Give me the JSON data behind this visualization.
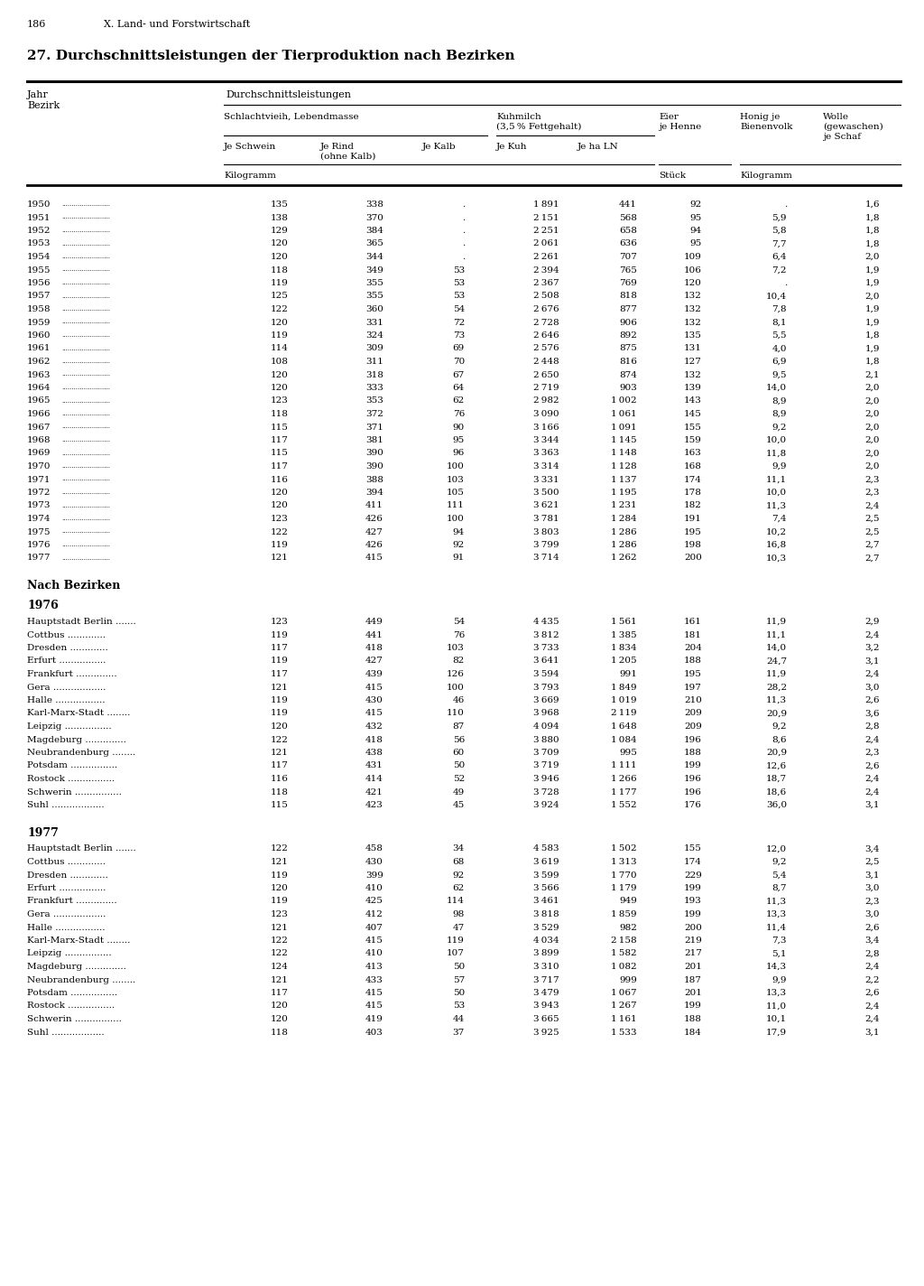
{
  "page_number": "186",
  "chapter": "X. Land- und Forstwirtschaft",
  "title": "27. Durchschnittsleistungen der Tierproduktion nach Bezirken",
  "yearly_data": [
    [
      "1950",
      135,
      338,
      ".",
      1891,
      441,
      92,
      ".",
      1.6
    ],
    [
      "1951",
      138,
      370,
      ".",
      2151,
      568,
      95,
      5.9,
      1.8
    ],
    [
      "1952",
      129,
      384,
      ".",
      2251,
      658,
      94,
      5.8,
      1.8
    ],
    [
      "1953",
      120,
      365,
      ".",
      2061,
      636,
      95,
      7.7,
      1.8
    ],
    [
      "1954",
      120,
      344,
      ".",
      2261,
      707,
      109,
      6.4,
      2.0
    ],
    [
      "1955",
      118,
      349,
      53,
      2394,
      765,
      106,
      7.2,
      1.9
    ],
    [
      "1956",
      119,
      355,
      53,
      2367,
      769,
      120,
      ".",
      1.9
    ],
    [
      "1957",
      125,
      355,
      53,
      2508,
      818,
      132,
      10.4,
      2.0
    ],
    [
      "1958",
      122,
      360,
      54,
      2676,
      877,
      132,
      7.8,
      1.9
    ],
    [
      "1959",
      120,
      331,
      72,
      2728,
      906,
      132,
      8.1,
      1.9
    ],
    [
      "1960",
      119,
      324,
      73,
      2646,
      892,
      135,
      5.5,
      1.8
    ],
    [
      "1961",
      114,
      309,
      69,
      2576,
      875,
      131,
      4.0,
      1.9
    ],
    [
      "1962",
      108,
      311,
      70,
      2448,
      816,
      127,
      6.9,
      1.8
    ],
    [
      "1963",
      120,
      318,
      67,
      2650,
      874,
      132,
      9.5,
      2.1
    ],
    [
      "1964",
      120,
      333,
      64,
      2719,
      903,
      139,
      14.0,
      2.0
    ],
    [
      "1965",
      123,
      353,
      62,
      2982,
      1002,
      143,
      8.9,
      2.0
    ],
    [
      "1966",
      118,
      372,
      76,
      3090,
      1061,
      145,
      8.9,
      2.0
    ],
    [
      "1967",
      115,
      371,
      90,
      3166,
      1091,
      155,
      9.2,
      2.0
    ],
    [
      "1968",
      117,
      381,
      95,
      3344,
      1145,
      159,
      10.0,
      2.0
    ],
    [
      "1969",
      115,
      390,
      96,
      3363,
      1148,
      163,
      11.8,
      2.0
    ],
    [
      "1970",
      117,
      390,
      100,
      3314,
      1128,
      168,
      9.9,
      2.0
    ],
    [
      "1971",
      116,
      388,
      103,
      3331,
      1137,
      174,
      11.1,
      2.3
    ],
    [
      "1972",
      120,
      394,
      105,
      3500,
      1195,
      178,
      10.0,
      2.3
    ],
    [
      "1973",
      120,
      411,
      111,
      3621,
      1231,
      182,
      11.3,
      2.4
    ],
    [
      "1974",
      123,
      426,
      100,
      3781,
      1284,
      191,
      7.4,
      2.5
    ],
    [
      "1975",
      122,
      427,
      94,
      3803,
      1286,
      195,
      10.2,
      2.5
    ],
    [
      "1976",
      119,
      426,
      92,
      3799,
      1286,
      198,
      16.8,
      2.7
    ],
    [
      "1977",
      121,
      415,
      91,
      3714,
      1262,
      200,
      10.3,
      2.7
    ]
  ],
  "bezirk_1976": [
    [
      "Hauptstadt Berlin",
      123,
      449,
      54,
      4435,
      1561,
      161,
      11.9,
      2.9
    ],
    [
      "Cottbus",
      119,
      441,
      76,
      3812,
      1385,
      181,
      11.1,
      2.4
    ],
    [
      "Dresden",
      117,
      418,
      103,
      3733,
      1834,
      204,
      14.0,
      3.2
    ],
    [
      "Erfurt",
      119,
      427,
      82,
      3641,
      1205,
      188,
      24.7,
      3.1
    ],
    [
      "Frankfurt",
      117,
      439,
      126,
      3594,
      991,
      195,
      11.9,
      2.4
    ],
    [
      "Gera",
      121,
      415,
      100,
      3793,
      1849,
      197,
      28.2,
      3.0
    ],
    [
      "Halle",
      119,
      430,
      46,
      3669,
      1019,
      210,
      11.3,
      2.6
    ],
    [
      "Karl-Marx-Stadt",
      119,
      415,
      110,
      3968,
      2119,
      209,
      20.9,
      3.6
    ],
    [
      "Leipzig",
      120,
      432,
      87,
      4094,
      1648,
      209,
      9.2,
      2.8
    ],
    [
      "Magdeburg",
      122,
      418,
      56,
      3880,
      1084,
      196,
      8.6,
      2.4
    ],
    [
      "Neubrandenburg",
      121,
      438,
      60,
      3709,
      995,
      188,
      20.9,
      2.3
    ],
    [
      "Potsdam",
      117,
      431,
      50,
      3719,
      1111,
      199,
      12.6,
      2.6
    ],
    [
      "Rostock",
      116,
      414,
      52,
      3946,
      1266,
      196,
      18.7,
      2.4
    ],
    [
      "Schwerin",
      118,
      421,
      49,
      3728,
      1177,
      196,
      18.6,
      2.4
    ],
    [
      "Suhl",
      115,
      423,
      45,
      3924,
      1552,
      176,
      36.0,
      3.1
    ]
  ],
  "bezirk_1977": [
    [
      "Hauptstadt Berlin",
      122,
      458,
      34,
      4583,
      1502,
      155,
      12.0,
      3.4
    ],
    [
      "Cottbus",
      121,
      430,
      68,
      3619,
      1313,
      174,
      9.2,
      2.5
    ],
    [
      "Dresden",
      119,
      399,
      92,
      3599,
      1770,
      229,
      5.4,
      3.1
    ],
    [
      "Erfurt",
      120,
      410,
      62,
      3566,
      1179,
      199,
      8.7,
      3.0
    ],
    [
      "Frankfurt",
      119,
      425,
      114,
      3461,
      949,
      193,
      11.3,
      2.3
    ],
    [
      "Gera",
      123,
      412,
      98,
      3818,
      1859,
      199,
      13.3,
      3.0
    ],
    [
      "Halle",
      121,
      407,
      47,
      3529,
      982,
      200,
      11.4,
      2.6
    ],
    [
      "Karl-Marx-Stadt",
      122,
      415,
      119,
      4034,
      2158,
      219,
      7.3,
      3.4
    ],
    [
      "Leipzig",
      122,
      410,
      107,
      3899,
      1582,
      217,
      5.1,
      2.8
    ],
    [
      "Magdeburg",
      124,
      413,
      50,
      3310,
      1082,
      201,
      14.3,
      2.4
    ],
    [
      "Neubrandenburg",
      121,
      433,
      57,
      3717,
      999,
      187,
      9.9,
      2.2
    ],
    [
      "Potsdam",
      117,
      415,
      50,
      3479,
      1067,
      201,
      13.3,
      2.6
    ],
    [
      "Rostock",
      120,
      415,
      53,
      3943,
      1267,
      199,
      11.0,
      2.4
    ],
    [
      "Schwerin",
      120,
      419,
      44,
      3665,
      1161,
      188,
      10.1,
      2.4
    ],
    [
      "Suhl",
      118,
      403,
      37,
      3925,
      1533,
      184,
      17.9,
      3.1
    ]
  ]
}
